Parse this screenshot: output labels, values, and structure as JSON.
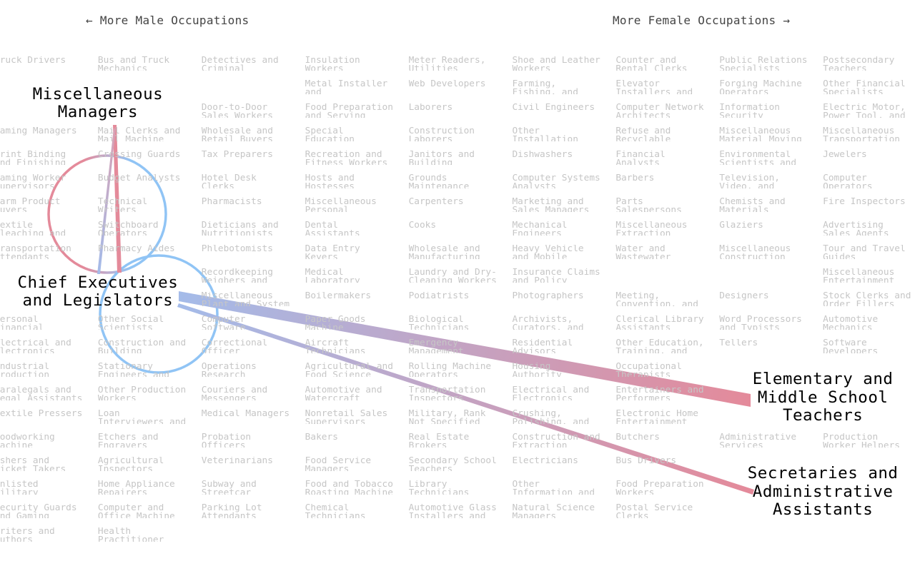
{
  "header": {
    "male_label": "← More Male Occupations",
    "female_label": "More Female Occupations →"
  },
  "colors": {
    "male": "#90c4f5",
    "female": "#e48a9a",
    "grid_text": "#c6c6c6"
  },
  "highlighted": {
    "source": "Chief Executives and Legislators",
    "targets": [
      "Miscellaneous Managers",
      "Elementary and Middle School Teachers",
      "Secretaries and Administrative Assistants"
    ]
  },
  "labels": {
    "misc_managers": "Miscellaneous\nManagers",
    "chief_exec": "Chief Executives\nand Legislators",
    "teachers": "Elementary and\nMiddle School\nTeachers",
    "secretaries": "Secretaries and\nAdministrative\nAssistants"
  },
  "grid": [
    [
      "Truck Drivers",
      "Bus and Truck Mechanics",
      "Detectives and Criminal",
      "Insulation Workers",
      "Meter Readers, Utilities",
      "Shoe and Leather Workers",
      "Counter and Rental Clerks",
      "Public Relations Specialists",
      "Postsecondary Teachers"
    ],
    [
      "",
      "Metal Installer and",
      "Web Developers",
      "Farming, Fishing, and",
      "Elevator Installers and",
      "Forging Machine Operators",
      "Other Financial Specialists",
      "Door-to-Door Sales Workers",
      "Food Preparation and Serving"
    ],
    [
      "Laborers",
      "Civil Engineers",
      "Computer Network Architects",
      "Information Security",
      "Electric Motor, Power Tool, and",
      "Gaming Managers",
      "Mail Clerks and Mail Machine",
      "Wholesale and Retail Buyers",
      "Special Education"
    ],
    [
      "Construction Laborers",
      "Other Installation",
      "Refuse and Recyclable",
      "Miscellaneous Material Moving",
      "Miscellaneous Transportation",
      "Print Binding and Finishing",
      "Crossing Guards",
      "Tax Preparers",
      "Recreation and Fitness Workers"
    ],
    [
      "Janitors and Building",
      "Dishwashers",
      "Financial Analysts",
      "Environmental Scientists and",
      "Jewelers",
      "Gaming Worker Supervisors",
      "Budget Analysts",
      "Hotel Desk Clerks",
      "Hosts and Hostesses"
    ],
    [
      "Grounds Maintenance",
      "Computer Systems Analysts",
      "Barbers",
      "Television, Video, and",
      "Computer Operators",
      "Farm Product Buyers",
      "Technical Writers",
      "Pharmacists",
      "Miscellaneous Personal"
    ],
    [
      "Carpenters",
      "Marketing and Sales Managers",
      "Parts Salespersons",
      "Chemists and Materials",
      "Fire Inspectors",
      "Textile Bleaching and",
      "Switchboard Operators",
      "Dieticians and Nutritionists",
      "Dental Assistants"
    ],
    [
      "Cooks",
      "Mechanical Engineers",
      "Miscellaneous Extraction",
      "Glaziers",
      "Advertising Sales Agents",
      "Transportation Attendants",
      "Pharmacy Aides",
      "Phlebotomists",
      "Data Entry Keyers"
    ],
    [
      "Wholesale and Manufacturing",
      "Heavy Vehicle and Mobile",
      "Water and Wastewater",
      "Miscellaneous Construction",
      "Tour and Travel Guides",
      "Recordkeeping Weighers and",
      "Medical Laboratory",
      "Laundry and Dry-Cleaning Workers",
      "Insurance Claims and Policy"
    ],
    [
      "",
      "",
      "Miscellaneous Entertainment",
      "Miscellaneous Plant and System",
      "Boilermakers",
      "Podiatrists",
      "Photographers",
      "Meeting, Convention, and",
      "Designers"
    ],
    [
      "Stock Clerks and Order Fillers",
      "Personal Financial",
      "Other Social Scientists",
      "Computer Software",
      "Paper Goods Machine",
      "Biological Technicians",
      "Archivists, Curators, and",
      "Clerical Library Assistants",
      "Word Processors and Typists"
    ],
    [
      "Automotive Mechanics",
      "Electrical and Electronics",
      "Construction and Building",
      "Correctional Officer",
      "Aircraft Technicians",
      "Emergency Management",
      "Residential Advisors",
      "Other Education, Training, and",
      "Tellers"
    ],
    [
      "Software Developers",
      "Industrial Production",
      "Stationary Engineers and",
      "Operations Research",
      "Agricultural and Food Science",
      "Rolling Machine Operators",
      "Housing Authority",
      "Occupational Therapists",
      "Paralegals and Legal Assistants"
    ],
    [
      "Other Production Workers",
      "Couriers and Messengers",
      "Automotive and Watercraft",
      "Transportation Inspectors",
      "Electrical and Electronics",
      "Entertainers and Performers",
      "Textile Pressers",
      "Loan Interviewers and",
      "Medical Managers"
    ],
    [
      "Nonretail Sales Supervisors",
      "Military, Rank Not Specified",
      "Crushing, Polishing, and",
      "Electronic Home Entertainment",
      "Woodworking Machine",
      "Etchers and Engravers",
      "Probation Officers",
      "Bakers",
      "Real Estate Brokers"
    ],
    [
      "Construction and Extraction",
      "Butchers",
      "Administrative Services",
      "Production Worker Helpers",
      "Ushers and Ticket Takers",
      "Agricultural Inspectors",
      "Veterinarians",
      "Food Service Managers",
      "Secondary School Teachers"
    ],
    [
      "Electricians",
      "Bus Drivers",
      "Enlisted Military",
      "Home Appliance Repairers",
      "Subway and Streetcar",
      "Food and Tobacco Roasting Machine",
      "Library Technicians",
      "Other Information and",
      "Food Preparation Workers"
    ],
    [
      "Security Guards and Gaming",
      "Computer and Office Machine",
      "Parking Lot Attendants",
      "Chemical Technicians",
      "Automotive Glass Installers and",
      "Natural Science Managers",
      "Postal Service Clerks",
      "Writers and Authors",
      "Health Practitioner"
    ]
  ]
}
